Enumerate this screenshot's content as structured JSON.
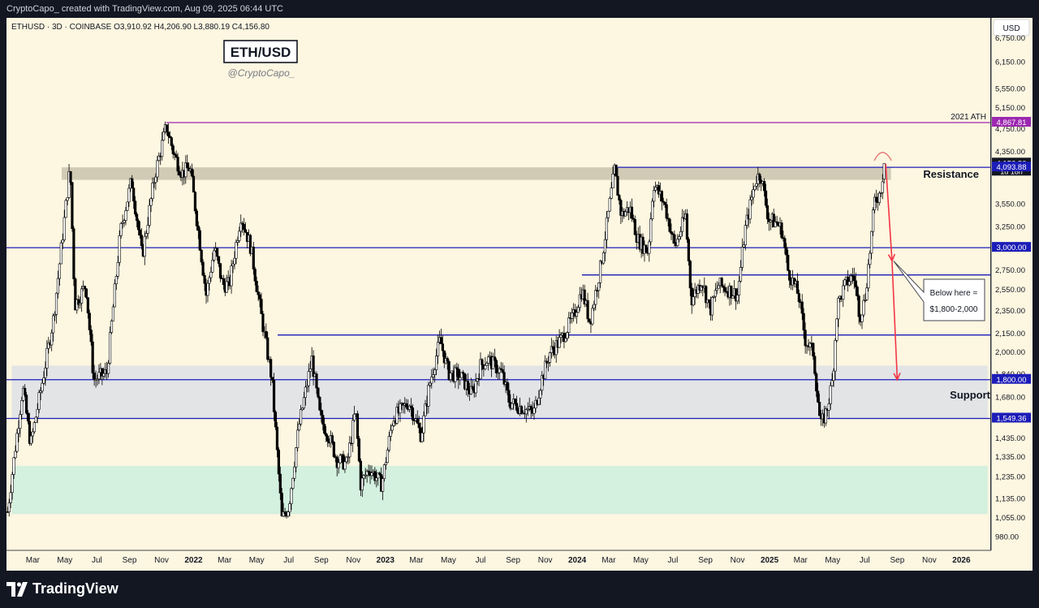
{
  "header": {
    "credit": "CryptoCapo_ created with TradingView.com, Aug 09, 2025 06:44 UTC"
  },
  "chart_info": {
    "symbol_line": "ETHUSD · 3D · COINBASE  O3,910.92  H4,206.90  L3,880.19  C4,156.80",
    "title": "ETH/USD",
    "author": "@CryptoCapo_",
    "currency": "USD"
  },
  "footer": {
    "brand": "TradingView"
  },
  "colors": {
    "background": "#fdf6e0",
    "purple": "#9c27b0",
    "blue": "#1c1cb8",
    "red": "#f23645",
    "resistance_zone": "#c9c2ad",
    "support_zone": "#dde1e6",
    "green_zone": "#cdeedd"
  },
  "chart_data": {
    "type": "candlestick",
    "title": "ETH/USD",
    "series_name": "ETHUSD",
    "last_ohlc": {
      "open": 3910.92,
      "high": 4206.9,
      "low": 3880.19,
      "close": 4156.8
    },
    "y_scale": "log",
    "ylim": [
      930,
      7300
    ],
    "xlim": [
      "2021-01-10",
      "2026-02-25"
    ],
    "x_ticks": [
      {
        "date": "2021-03-01",
        "label": "Mar"
      },
      {
        "date": "2021-05-01",
        "label": "May"
      },
      {
        "date": "2021-07-01",
        "label": "Jul"
      },
      {
        "date": "2021-09-01",
        "label": "Sep"
      },
      {
        "date": "2021-11-01",
        "label": "Nov"
      },
      {
        "date": "2022-01-01",
        "label": "2022"
      },
      {
        "date": "2022-03-01",
        "label": "Mar"
      },
      {
        "date": "2022-05-01",
        "label": "May"
      },
      {
        "date": "2022-07-01",
        "label": "Jul"
      },
      {
        "date": "2022-09-01",
        "label": "Sep"
      },
      {
        "date": "2022-11-01",
        "label": "Nov"
      },
      {
        "date": "2023-01-01",
        "label": "2023"
      },
      {
        "date": "2023-03-01",
        "label": "Mar"
      },
      {
        "date": "2023-05-01",
        "label": "May"
      },
      {
        "date": "2023-07-01",
        "label": "Jul"
      },
      {
        "date": "2023-09-01",
        "label": "Sep"
      },
      {
        "date": "2023-11-01",
        "label": "Nov"
      },
      {
        "date": "2024-01-01",
        "label": "2024"
      },
      {
        "date": "2024-03-01",
        "label": "Mar"
      },
      {
        "date": "2024-05-01",
        "label": "May"
      },
      {
        "date": "2024-07-01",
        "label": "Jul"
      },
      {
        "date": "2024-09-01",
        "label": "Sep"
      },
      {
        "date": "2024-11-01",
        "label": "Nov"
      },
      {
        "date": "2025-01-01",
        "label": "2025"
      },
      {
        "date": "2025-03-01",
        "label": "Mar"
      },
      {
        "date": "2025-05-01",
        "label": "May"
      },
      {
        "date": "2025-07-01",
        "label": "Jul"
      },
      {
        "date": "2025-09-01",
        "label": "Sep"
      },
      {
        "date": "2025-11-01",
        "label": "Nov"
      },
      {
        "date": "2026-01-01",
        "label": "2026"
      }
    ],
    "y_ticks": [
      {
        "value": 6750,
        "label": "6,750.00"
      },
      {
        "value": 6150,
        "label": "6,150.00"
      },
      {
        "value": 5550,
        "label": "5,550.00"
      },
      {
        "value": 5150,
        "label": "5,150.00"
      },
      {
        "value": 4750,
        "label": "4,750.00"
      },
      {
        "value": 4350,
        "label": "4,350.00"
      },
      {
        "value": 3550,
        "label": "3,550.00"
      },
      {
        "value": 3250,
        "label": "3,250.00"
      },
      {
        "value": 3000,
        "label": "3,000.00"
      },
      {
        "value": 2750,
        "label": "2,750.00"
      },
      {
        "value": 2550,
        "label": "2,550.00"
      },
      {
        "value": 2350,
        "label": "2,350.00"
      },
      {
        "value": 2150,
        "label": "2,150.00"
      },
      {
        "value": 2000,
        "label": "2,000.00"
      },
      {
        "value": 1840,
        "label": "1,840.00"
      },
      {
        "value": 1680,
        "label": "1,680.00"
      },
      {
        "value": 1435,
        "label": "1,435.00"
      },
      {
        "value": 1335,
        "label": "1,335.00"
      },
      {
        "value": 1235,
        "label": "1,235.00"
      },
      {
        "value": 1135,
        "label": "1,135.00"
      },
      {
        "value": 1055,
        "label": "1,055.00"
      },
      {
        "value": 980,
        "label": "980.00"
      }
    ],
    "price_labels": [
      {
        "value": 4867.81,
        "label": "4,867.81",
        "color": "#9c27b0"
      },
      {
        "value": 4156.8,
        "label": "4,156.80",
        "sub": "1d 18h",
        "color": "#131722"
      },
      {
        "value": 4093.88,
        "label": "4,093.88",
        "color": "#1c1cb8"
      },
      {
        "value": 3000,
        "label": "3,000.00",
        "color": "#1c1cb8"
      },
      {
        "value": 1800,
        "label": "1,800.00",
        "color": "#1c1cb8"
      },
      {
        "value": 1549.36,
        "label": "1,549.36",
        "color": "#1c1cb8"
      }
    ],
    "zones": [
      {
        "name": "resistance",
        "from": "2021-04-25",
        "to": "2025-08-20",
        "low": 3900,
        "high": 4093.88,
        "label": "Resistance",
        "color": "#c9c2ad"
      },
      {
        "name": "support",
        "from": "2021-01-20",
        "to": "2026-02-20",
        "low": 1549.36,
        "high": 1900,
        "label": "Support",
        "color": "#dde1e6"
      },
      {
        "name": "demand",
        "from": "2021-01-20",
        "to": "2026-02-20",
        "low": 1070,
        "high": 1290,
        "label": "",
        "color": "#cdeedd"
      }
    ],
    "horizontal_lines": [
      {
        "value": 4867.81,
        "from": "2021-11-10",
        "color": "#9c27b0",
        "label": "2021 ATH"
      },
      {
        "value": 4093.88,
        "from": "2024-03-12",
        "color": "#1c1cb8",
        "label": ""
      },
      {
        "value": 3000,
        "from": "2021-01-10",
        "color": "#1c1cb8",
        "label": ""
      },
      {
        "value": 2700,
        "from": "2024-01-10",
        "color": "#1c1cb8",
        "label": ""
      },
      {
        "value": 2140,
        "from": "2022-06-10",
        "color": "#1c1cb8",
        "label": ""
      },
      {
        "value": 1800,
        "from": "2021-01-10",
        "color": "#1c1cb8",
        "label": ""
      },
      {
        "value": 1549.36,
        "from": "2021-01-10",
        "color": "#1c1cb8",
        "label": ""
      }
    ],
    "projection": {
      "points": [
        {
          "date": "2025-08-10",
          "value": 4150
        },
        {
          "date": "2025-08-22",
          "value": 2850
        },
        {
          "date": "2025-09-01",
          "value": 1800
        }
      ],
      "color": "#f23645"
    },
    "callout": {
      "text_line1": "Below here =",
      "text_line2": "$1,800-2,000",
      "anchor_date": "2025-08-25",
      "anchor_value": 2850
    },
    "ohlc_anchor_points": [
      [
        "2021-01-12",
        1080
      ],
      [
        "2021-02-10",
        1750
      ],
      [
        "2021-02-25",
        1400
      ],
      [
        "2021-03-20",
        1800
      ],
      [
        "2021-04-10",
        2300
      ],
      [
        "2021-05-11",
        4100
      ],
      [
        "2021-05-20",
        2400
      ],
      [
        "2021-06-10",
        2600
      ],
      [
        "2021-06-25",
        1800
      ],
      [
        "2021-07-20",
        1850
      ],
      [
        "2021-08-15",
        3200
      ],
      [
        "2021-09-05",
        3900
      ],
      [
        "2021-09-25",
        2900
      ],
      [
        "2021-10-20",
        4000
      ],
      [
        "2021-11-10",
        4800
      ],
      [
        "2021-11-25",
        4300
      ],
      [
        "2021-12-10",
        4000
      ],
      [
        "2021-12-25",
        4100
      ],
      [
        "2022-01-10",
        3200
      ],
      [
        "2022-01-25",
        2500
      ],
      [
        "2022-02-10",
        3000
      ],
      [
        "2022-02-25",
        2600
      ],
      [
        "2022-03-10",
        2600
      ],
      [
        "2022-04-01",
        3400
      ],
      [
        "2022-04-20",
        3000
      ],
      [
        "2022-05-10",
        2300
      ],
      [
        "2022-05-30",
        1800
      ],
      [
        "2022-06-18",
        1050
      ],
      [
        "2022-07-01",
        1100
      ],
      [
        "2022-07-20",
        1500
      ],
      [
        "2022-08-14",
        1950
      ],
      [
        "2022-08-30",
        1550
      ],
      [
        "2022-09-15",
        1450
      ],
      [
        "2022-10-01",
        1320
      ],
      [
        "2022-10-20",
        1300
      ],
      [
        "2022-11-05",
        1600
      ],
      [
        "2022-11-15",
        1200
      ],
      [
        "2022-12-01",
        1280
      ],
      [
        "2022-12-25",
        1200
      ],
      [
        "2023-01-15",
        1550
      ],
      [
        "2023-02-15",
        1650
      ],
      [
        "2023-03-10",
        1450
      ],
      [
        "2023-03-25",
        1750
      ],
      [
        "2023-04-15",
        2100
      ],
      [
        "2023-05-01",
        1850
      ],
      [
        "2023-05-25",
        1820
      ],
      [
        "2023-06-15",
        1700
      ],
      [
        "2023-07-01",
        1900
      ],
      [
        "2023-07-15",
        1950
      ],
      [
        "2023-08-10",
        1850
      ],
      [
        "2023-08-25",
        1650
      ],
      [
        "2023-09-15",
        1620
      ],
      [
        "2023-10-10",
        1580
      ],
      [
        "2023-10-25",
        1800
      ],
      [
        "2023-11-10",
        2000
      ],
      [
        "2023-12-01",
        2100
      ],
      [
        "2023-12-25",
        2300
      ],
      [
        "2024-01-10",
        2550
      ],
      [
        "2024-01-25",
        2250
      ],
      [
        "2024-02-15",
        2800
      ],
      [
        "2024-03-12",
        4050
      ],
      [
        "2024-03-25",
        3400
      ],
      [
        "2024-04-10",
        3500
      ],
      [
        "2024-04-25",
        3100
      ],
      [
        "2024-05-15",
        2950
      ],
      [
        "2024-05-25",
        3850
      ],
      [
        "2024-06-15",
        3550
      ],
      [
        "2024-07-05",
        3000
      ],
      [
        "2024-07-25",
        3400
      ],
      [
        "2024-08-05",
        2450
      ],
      [
        "2024-08-25",
        2650
      ],
      [
        "2024-09-10",
        2350
      ],
      [
        "2024-09-25",
        2600
      ],
      [
        "2024-10-15",
        2550
      ],
      [
        "2024-11-01",
        2500
      ],
      [
        "2024-11-15",
        3200
      ],
      [
        "2024-12-05",
        3900
      ],
      [
        "2024-12-15",
        4000
      ],
      [
        "2024-12-30",
        3350
      ],
      [
        "2025-01-15",
        3300
      ],
      [
        "2025-01-25",
        3200
      ],
      [
        "2025-02-05",
        2750
      ],
      [
        "2025-02-25",
        2500
      ],
      [
        "2025-03-10",
        2100
      ],
      [
        "2025-03-25",
        2000
      ],
      [
        "2025-04-08",
        1500
      ],
      [
        "2025-04-20",
        1600
      ],
      [
        "2025-05-01",
        1800
      ],
      [
        "2025-05-10",
        2400
      ],
      [
        "2025-05-25",
        2600
      ],
      [
        "2025-06-10",
        2700
      ],
      [
        "2025-06-22",
        2300
      ],
      [
        "2025-07-01",
        2450
      ],
      [
        "2025-07-10",
        2900
      ],
      [
        "2025-07-20",
        3600
      ],
      [
        "2025-07-30",
        3700
      ],
      [
        "2025-08-08",
        4156.8
      ]
    ]
  }
}
